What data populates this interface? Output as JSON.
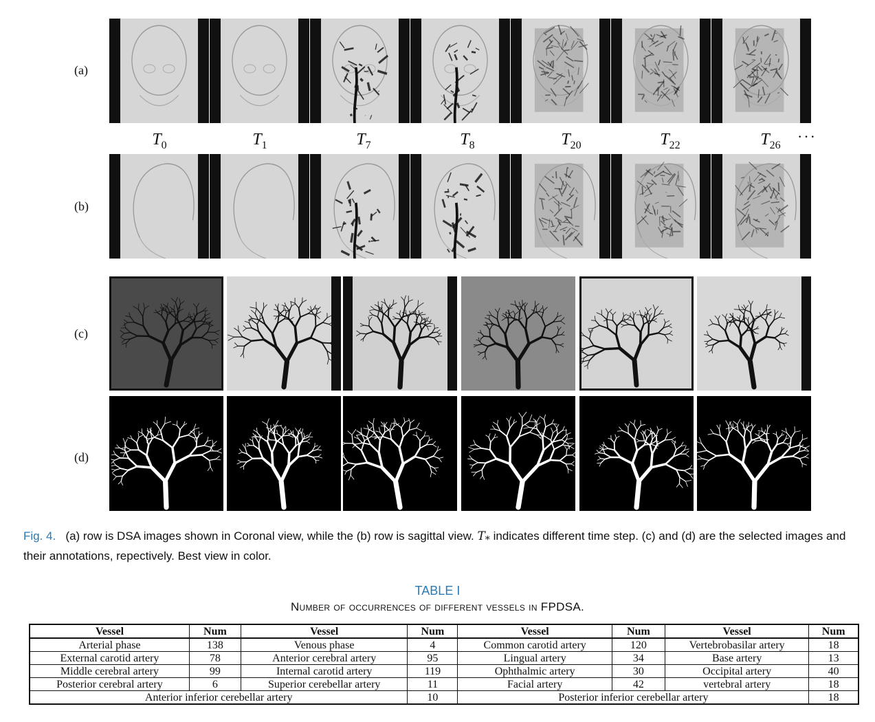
{
  "figure": {
    "row_labels": [
      "(a)",
      "(b)",
      "(c)",
      "(d)"
    ],
    "time_steps": [
      {
        "base": "T",
        "sub": "0"
      },
      {
        "base": "T",
        "sub": "1"
      },
      {
        "base": "T",
        "sub": "7"
      },
      {
        "base": "T",
        "sub": "8"
      },
      {
        "base": "T",
        "sub": "20"
      },
      {
        "base": "T",
        "sub": "22"
      },
      {
        "base": "T",
        "sub": "26"
      }
    ],
    "time_ellipsis": "···",
    "caption": {
      "label": "Fig. 4.",
      "part1": "(a) row is DSA images shown in Coronal view, while the (b) row is sagittal view.",
      "math": "T",
      "math_sub": "*",
      "part2": "indicates different time step. (c) and (d) are the selected images and their annotations, repectively. Best view in color."
    }
  },
  "table": {
    "number": "TABLE I",
    "title": "Number of occurrences of different vessels in FPDSA.",
    "headers": [
      "Vessel",
      "Num",
      "Vessel",
      "Num",
      "Vessel",
      "Num",
      "Vessel",
      "Num"
    ],
    "rows": [
      [
        "Arterial phase",
        "138",
        "Venous phase",
        "4",
        "Common carotid artery",
        "120",
        "Vertebrobasilar artery",
        "18"
      ],
      [
        "External carotid artery",
        "78",
        "Anterior cerebral artery",
        "95",
        "Lingual artery",
        "34",
        "Base artery",
        "13"
      ],
      [
        "Middle cerebral artery",
        "99",
        "Internal carotid artery",
        "119",
        "Ophthalmic artery",
        "30",
        "Occipital artery",
        "40"
      ],
      [
        "Posterior cerebral artery",
        "6",
        "Superior cerebellar artery",
        "11",
        "Facial artery",
        "42",
        "vertebral artery",
        "18"
      ]
    ],
    "last_row": [
      "Anterior inferior cerebellar artery",
      "10",
      "Posterior inferior cerebellar artery",
      "18"
    ]
  }
}
